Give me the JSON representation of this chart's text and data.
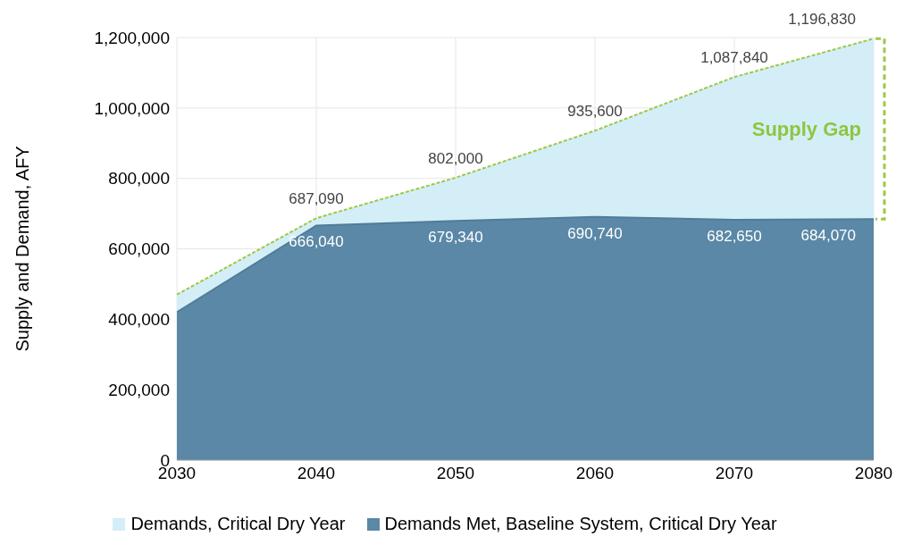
{
  "chart_data": {
    "type": "area",
    "ylabel": "Supply and Demand, AFY",
    "x": [
      2030,
      2040,
      2050,
      2060,
      2070,
      2080
    ],
    "series": [
      {
        "name": "Demands, Critical Dry Year",
        "color": "#d4eef8",
        "values": [
          470000,
          687090,
          802000,
          935600,
          1087840,
          1196830
        ],
        "value_labels": [
          null,
          "687,090",
          "802,000",
          "935,600",
          "1,087,840",
          "1,196,830"
        ]
      },
      {
        "name": "Demands Met, Baseline System, Critical Dry Year",
        "color": "#5a88a6",
        "values": [
          420000,
          666040,
          679340,
          690740,
          682650,
          684070
        ],
        "value_labels": [
          null,
          "666,040",
          "679,340",
          "690,740",
          "682,650",
          "684,070"
        ]
      }
    ],
    "annotations": [
      "Supply Gap"
    ],
    "xlim": [
      2030,
      2080
    ],
    "xticks": [
      2030,
      2040,
      2050,
      2060,
      2070,
      2080
    ],
    "ylim": [
      0,
      1200000
    ],
    "yticks": [
      0,
      {
        "value": 200000,
        "label": "200,000"
      },
      {
        "value": 400000,
        "label": "400,000"
      },
      {
        "value": 600000,
        "label": "600,000"
      },
      {
        "value": 800000,
        "label": "800,000"
      },
      {
        "value": 1000000,
        "label": "1,000,000"
      },
      {
        "value": 1200000,
        "label": "1,200,000"
      }
    ],
    "grid": true,
    "legend": "bottom"
  }
}
